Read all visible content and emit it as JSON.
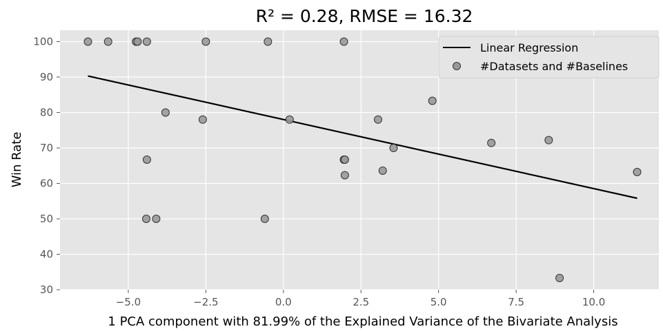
{
  "chart_data": {
    "type": "scatter",
    "title": "R² = 0.28, RMSE = 16.32",
    "xlabel": "1 PCA component with 81.99% of the Explained Variance of the Bivariate Analysis",
    "ylabel": "Win Rate",
    "xlim": [
      -7.2,
      12.1
    ],
    "ylim": [
      30,
      103.2
    ],
    "x_ticks": [
      -5.0,
      -2.5,
      0.0,
      2.5,
      5.0,
      7.5,
      10.0
    ],
    "x_tick_labels": [
      "−5.0",
      "−2.5",
      "0.0",
      "2.5",
      "5.0",
      "7.5",
      "10.0"
    ],
    "y_ticks": [
      30,
      40,
      50,
      60,
      70,
      80,
      90,
      100
    ],
    "y_tick_labels": [
      "30",
      "40",
      "50",
      "60",
      "70",
      "80",
      "90",
      "100"
    ],
    "grid": true,
    "legend_position": "top-right",
    "regression_line": {
      "name": "Linear Regression",
      "color": "#000000",
      "x": [
        -6.3,
        11.4
      ],
      "y": [
        90.3,
        55.8
      ]
    },
    "series": [
      {
        "name": "#Datasets and #Baselines",
        "color": "#999999",
        "edge_color": "#333333",
        "x": [
          -6.3,
          -5.65,
          -4.75,
          -4.7,
          -4.4,
          -2.5,
          -0.5,
          1.95,
          -3.8,
          -2.6,
          0.2,
          3.05,
          4.8,
          -4.4,
          1.95,
          1.98,
          3.55,
          3.2,
          1.98,
          6.7,
          8.55,
          11.4,
          -4.42,
          -4.1,
          -0.6,
          8.9
        ],
        "y": [
          100,
          100,
          100,
          100,
          100,
          100,
          100,
          100,
          80,
          78,
          78,
          78,
          83.3,
          66.7,
          66.7,
          66.7,
          70,
          63.6,
          62.3,
          71.4,
          72.2,
          63.2,
          50,
          50,
          50,
          33.3
        ]
      }
    ]
  },
  "legend": {
    "line_label": "Linear Regression",
    "marker_label": "#Datasets and #Baselines"
  }
}
